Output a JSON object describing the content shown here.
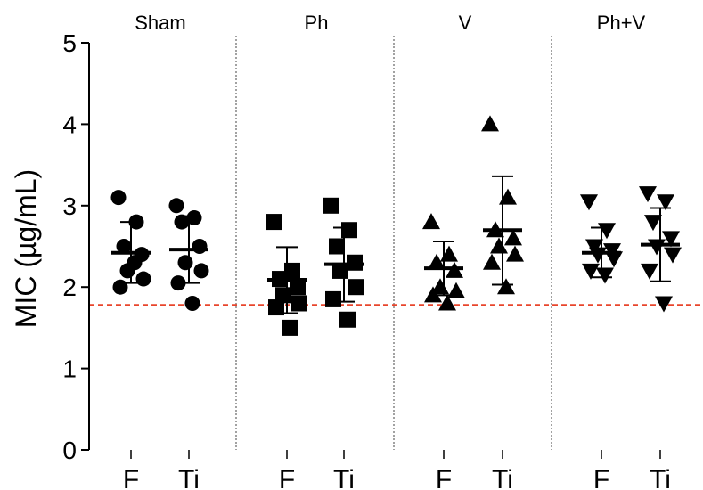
{
  "chart_data": {
    "type": "scatter",
    "ylabel": "MIC (µg/mL)",
    "ylim": [
      0,
      5
    ],
    "yticks": [
      "0",
      "1",
      "2",
      "3",
      "4",
      "5"
    ],
    "reference_line": {
      "y": 1.78,
      "color": "#e8452c",
      "style": "dashed"
    },
    "groups": [
      {
        "name": "Sham",
        "marker": "circle",
        "series": [
          {
            "category": "F",
            "values": [
              3.1,
              2.8,
              2.5,
              2.4,
              2.2,
              2.1,
              2.0,
              2.3
            ],
            "mean": 2.42,
            "sd_low": 2.05,
            "sd_high": 2.8
          },
          {
            "category": "Ti",
            "values": [
              3.0,
              2.85,
              2.8,
              2.5,
              2.3,
              2.2,
              2.05,
              1.8
            ],
            "mean": 2.46,
            "sd_low": 2.05,
            "sd_high": 2.87
          }
        ]
      },
      {
        "name": "Ph",
        "marker": "square",
        "series": [
          {
            "category": "F",
            "values": [
              2.8,
              2.2,
              2.1,
              2.0,
              1.9,
              1.8,
              1.75,
              1.5
            ],
            "mean": 2.09,
            "sd_low": 1.68,
            "sd_high": 2.49
          },
          {
            "category": "Ti",
            "values": [
              3.0,
              2.7,
              2.5,
              2.3,
              2.2,
              2.0,
              1.85,
              1.6
            ],
            "mean": 2.28,
            "sd_low": 1.82,
            "sd_high": 2.73
          }
        ]
      },
      {
        "name": "V",
        "marker": "triangle-up",
        "series": [
          {
            "category": "F",
            "values": [
              2.8,
              2.4,
              2.3,
              2.2,
              2.0,
              1.95,
              1.9,
              1.8
            ],
            "mean": 2.23,
            "sd_low": 1.9,
            "sd_high": 2.56
          },
          {
            "category": "Ti",
            "values": [
              4.0,
              3.1,
              2.7,
              2.6,
              2.5,
              2.4,
              2.3,
              2.0
            ],
            "mean": 2.7,
            "sd_low": 2.03,
            "sd_high": 3.36
          }
        ]
      },
      {
        "name": "Ph+V",
        "marker": "triangle-down",
        "series": [
          {
            "category": "F",
            "values": [
              3.05,
              2.7,
              2.5,
              2.45,
              2.4,
              2.35,
              2.2,
              2.15
            ],
            "mean": 2.42,
            "sd_low": 2.12,
            "sd_high": 2.73
          },
          {
            "category": "Ti",
            "values": [
              3.15,
              3.05,
              2.8,
              2.6,
              2.5,
              2.4,
              2.2,
              1.8
            ],
            "mean": 2.52,
            "sd_low": 2.07,
            "sd_high": 2.97
          }
        ]
      }
    ]
  }
}
